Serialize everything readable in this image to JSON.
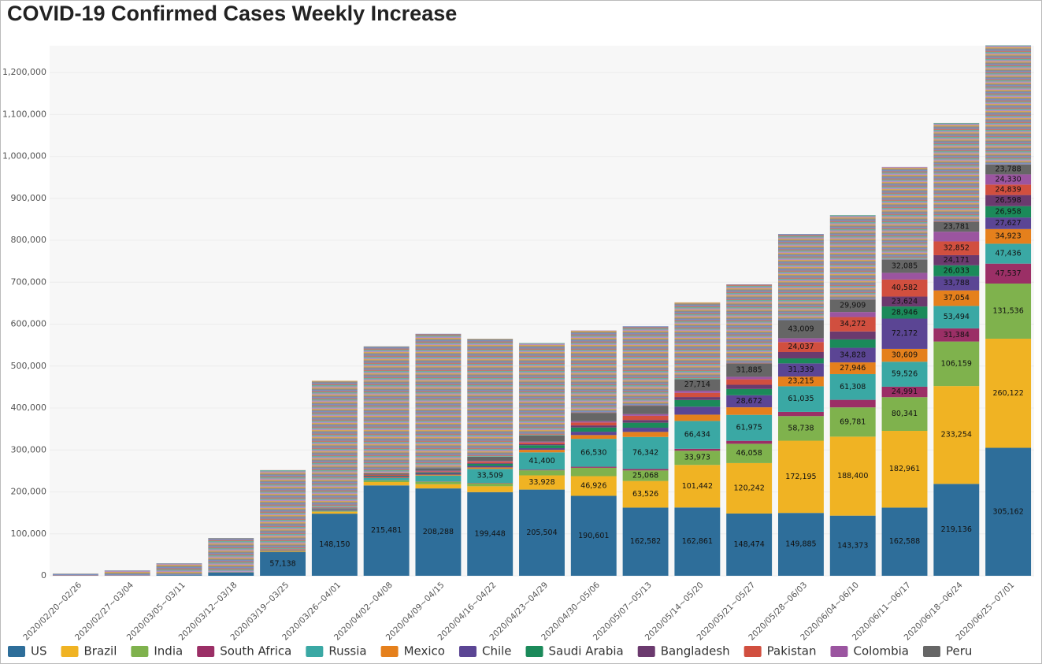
{
  "chart_data": {
    "type": "stacked_bar",
    "title": "COVID-19 Confirmed Cases Weekly Increase",
    "categories": [
      "2020/02/20~02/26",
      "2020/02/27~03/04",
      "2020/03/05~03/11",
      "2020/03/12~03/18",
      "2020/03/19~03/25",
      "2020/03/26~04/01",
      "2020/04/02~04/08",
      "2020/04/09~04/15",
      "2020/04/16~04/22",
      "2020/04/23~04/29",
      "2020/04/30~05/06",
      "2020/05/07~05/13",
      "2020/05/14~05/20",
      "2020/05/21~05/27",
      "2020/05/28~06/03",
      "2020/06/04~06/10",
      "2020/06/11~06/17",
      "2020/06/18~06/24",
      "2020/06/25~07/01"
    ],
    "ylim": [
      0,
      1264000
    ],
    "yticks": [
      0,
      {
        "value": 100000,
        "label": "100,000"
      },
      {
        "value": 200000,
        "label": "200,000"
      },
      {
        "value": 300000,
        "label": "300,000"
      },
      {
        "value": 400000,
        "label": "400,000"
      },
      {
        "value": 500000,
        "label": "500,000"
      },
      {
        "value": 600000,
        "label": "600,000"
      },
      {
        "value": 700000,
        "label": "700,000"
      },
      {
        "value": 800000,
        "label": "800,000"
      },
      {
        "value": 900000,
        "label": "900,000"
      },
      {
        "value": 1000000,
        "label": "1,000,000"
      },
      {
        "value": 1100000,
        "label": "1,100,000"
      },
      {
        "value": 1200000,
        "label": "1,200,000"
      }
    ],
    "grid": true,
    "legend": "bottom",
    "series": [
      {
        "name": "US",
        "color": "#2e6e9a",
        "values": [
          20,
          100,
          1500,
          8000,
          57138,
          148150,
          215481,
          208288,
          199448,
          205504,
          190601,
          162582,
          162861,
          148474,
          149885,
          143373,
          162588,
          219136,
          305162
        ],
        "value_labels": [
          null,
          null,
          null,
          null,
          "57,138",
          "148,150",
          "215,481",
          "208,288",
          "199,448",
          "205,504",
          "190,601",
          "162,582",
          "162,861",
          "148,474",
          "149,885",
          "143,373",
          "162,588",
          "219,136",
          "305,162"
        ]
      },
      {
        "name": "Brazil",
        "color": "#f0b323",
        "values": [
          0,
          2,
          30,
          300,
          2000,
          4500,
          8000,
          10000,
          14000,
          33928,
          46926,
          63526,
          101442,
          120242,
          172195,
          188400,
          182961,
          233254,
          260122
        ],
        "value_labels": [
          null,
          null,
          null,
          null,
          null,
          null,
          null,
          null,
          null,
          "33,928",
          "46,926",
          "63,526",
          "101,442",
          "120,242",
          "172,195",
          "188,400",
          "182,961",
          "233,254",
          "260,122"
        ]
      },
      {
        "name": "India",
        "color": "#7fb24d",
        "values": [
          0,
          25,
          40,
          100,
          400,
          1200,
          4000,
          6000,
          7000,
          12000,
          20000,
          25068,
          33973,
          46058,
          58738,
          69781,
          80341,
          106159,
          131536
        ],
        "value_labels": [
          null,
          null,
          null,
          null,
          null,
          null,
          null,
          null,
          null,
          null,
          null,
          "25,068",
          "33,973",
          "46,058",
          "58,738",
          "69,781",
          "80,341",
          "106,159",
          "131,536"
        ]
      },
      {
        "name": "South Africa",
        "color": "#9b2f66",
        "values": [
          0,
          0,
          10,
          100,
          700,
          1000,
          400,
          700,
          1000,
          1500,
          2500,
          3500,
          4500,
          7000,
          10000,
          18000,
          24991,
          31384,
          47537
        ],
        "value_labels": [
          null,
          null,
          null,
          null,
          null,
          null,
          null,
          null,
          null,
          null,
          null,
          null,
          null,
          null,
          null,
          null,
          "24,991",
          "31,384",
          "47,537"
        ]
      },
      {
        "name": "Russia",
        "color": "#3aa8a4",
        "values": [
          0,
          3,
          10,
          100,
          500,
          2200,
          5000,
          14000,
          33509,
          41400,
          66530,
          76342,
          66434,
          61975,
          61035,
          61308,
          59526,
          53494,
          47436
        ],
        "value_labels": [
          null,
          null,
          null,
          null,
          null,
          null,
          null,
          null,
          "33,509",
          "41,400",
          "66,530",
          "76,342",
          "66,434",
          "61,975",
          "61,035",
          "61,308",
          "59,526",
          "53,494",
          "47,436"
        ]
      },
      {
        "name": "Mexico",
        "color": "#e5801c",
        "values": [
          0,
          5,
          5,
          100,
          300,
          1000,
          1400,
          2300,
          3500,
          6000,
          9000,
          12000,
          15000,
          18000,
          23215,
          27946,
          30609,
          37054,
          34923
        ],
        "value_labels": [
          null,
          null,
          null,
          null,
          null,
          null,
          null,
          null,
          null,
          null,
          null,
          null,
          null,
          null,
          "23,215",
          "27,946",
          "30,609",
          "37,054",
          "34,923"
        ]
      },
      {
        "name": "Chile",
        "color": "#5b4594",
        "values": [
          0,
          1,
          20,
          300,
          800,
          2000,
          2500,
          3000,
          3500,
          4000,
          8000,
          10000,
          19000,
          28672,
          31339,
          34828,
          72172,
          33788,
          27627
        ],
        "value_labels": [
          null,
          null,
          null,
          null,
          null,
          null,
          null,
          null,
          null,
          null,
          null,
          null,
          null,
          "28,672",
          "31,339",
          "34,828",
          "72,172",
          "33,788",
          "27,627"
        ]
      },
      {
        "name": "Saudi Arabia",
        "color": "#1b8a5a",
        "values": [
          0,
          0,
          20,
          200,
          500,
          1000,
          1500,
          2000,
          5000,
          7000,
          10000,
          12000,
          16000,
          15000,
          12000,
          20000,
          28946,
          26033,
          26958
        ],
        "value_labels": [
          null,
          null,
          null,
          null,
          null,
          null,
          null,
          null,
          null,
          null,
          null,
          null,
          null,
          null,
          null,
          null,
          "28,946",
          "26,033",
          "26,958"
        ]
      },
      {
        "name": "Bangladesh",
        "color": "#6b3a6e",
        "values": [
          0,
          0,
          3,
          10,
          30,
          10,
          150,
          900,
          2000,
          2500,
          5000,
          6500,
          7000,
          10000,
          15000,
          19000,
          23624,
          24171,
          26598
        ],
        "value_labels": [
          null,
          null,
          null,
          null,
          null,
          null,
          null,
          null,
          null,
          null,
          null,
          null,
          null,
          null,
          null,
          null,
          "23,624",
          "24,171",
          "26,598"
        ]
      },
      {
        "name": "Pakistan",
        "color": "#d14f3f",
        "values": [
          0,
          5,
          20,
          250,
          800,
          1200,
          2000,
          2000,
          3500,
          4000,
          7000,
          10000,
          10000,
          13000,
          24037,
          34272,
          40582,
          32852,
          24839
        ],
        "value_labels": [
          null,
          null,
          null,
          null,
          null,
          null,
          null,
          null,
          null,
          null,
          null,
          null,
          null,
          null,
          "24,037",
          "34,272",
          "40,582",
          "32,852",
          "24,839"
        ]
      },
      {
        "name": "Colombia",
        "color": "#9b55a0",
        "values": [
          0,
          0,
          10,
          80,
          400,
          600,
          800,
          1300,
          1300,
          2000,
          3000,
          4000,
          5000,
          6000,
          9000,
          12000,
          16000,
          23000,
          24330
        ],
        "value_labels": [
          null,
          null,
          null,
          null,
          null,
          null,
          null,
          null,
          null,
          null,
          null,
          null,
          null,
          null,
          null,
          null,
          null,
          null,
          "24,330"
        ]
      },
      {
        "name": "Peru",
        "color": "#666666",
        "values": [
          0,
          0,
          20,
          200,
          300,
          800,
          3000,
          6000,
          10000,
          15000,
          20000,
          20000,
          27714,
          31885,
          43009,
          29909,
          32085,
          23781,
          23788
        ],
        "value_labels": [
          null,
          null,
          null,
          null,
          null,
          null,
          null,
          null,
          null,
          null,
          null,
          null,
          "27,714",
          "31,885",
          "43,009",
          "29,909",
          "32,085",
          "23,781",
          "23,788"
        ]
      },
      {
        "color": "#a9a3c4",
        "values": [
          4980,
          12860,
          28300,
          80260,
          188130,
          301340,
          302770,
          320510,
          281240,
          220170,
          196440,
          189480,
          183080,
          188690,
          205550,
          201180,
          220580,
          235890,
          284140
        ]
      }
    ]
  }
}
